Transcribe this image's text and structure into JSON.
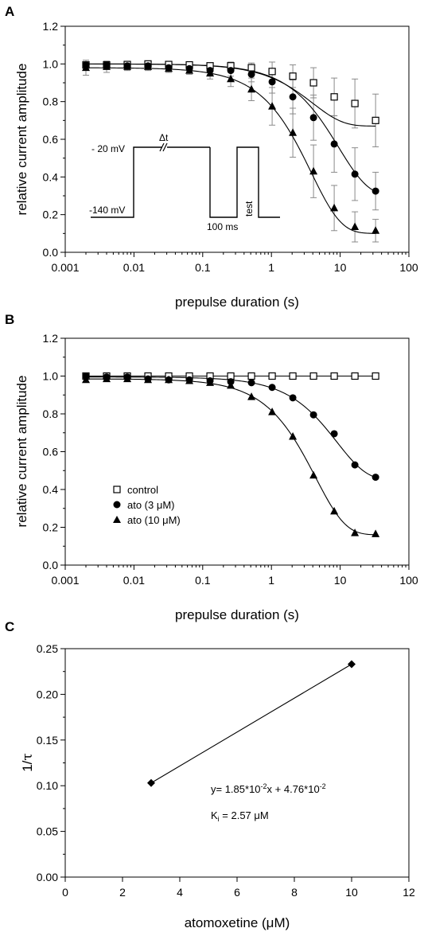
{
  "chart_data": [
    {
      "panel": "A",
      "type": "scatter",
      "xscale": "log",
      "xlim": [
        0.001,
        100
      ],
      "ylim": [
        0,
        1.2
      ],
      "xticks": [
        "0.001",
        "0.01",
        "0.1",
        "1",
        "10",
        "100"
      ],
      "yticks": [
        "0.0",
        "0.2",
        "0.4",
        "0.6",
        "0.8",
        "1.0",
        "1.2"
      ],
      "xlabel": "prepulse duration (s)",
      "ylabel": "relative current amplitude",
      "series": [
        {
          "marker": "open-square",
          "x": [
            0.002,
            0.004,
            0.008,
            0.016,
            0.032,
            0.064,
            0.128,
            0.256,
            0.512,
            1.024,
            2.048,
            4.096,
            8.192,
            16.384,
            32.768
          ],
          "y": [
            0.995,
            0.995,
            0.997,
            1.0,
            0.997,
            0.995,
            0.99,
            0.99,
            0.98,
            0.96,
            0.935,
            0.9,
            0.825,
            0.79,
            0.7
          ],
          "err": [
            0.012,
            0.012,
            0.012,
            0.012,
            0.012,
            0.012,
            0.015,
            0.02,
            0.025,
            0.05,
            0.06,
            0.08,
            0.1,
            0.13,
            0.14
          ],
          "fit": {
            "A0": 0.67,
            "A1": 0.33,
            "tau": 4.0
          }
        },
        {
          "marker": "filled-circle",
          "x": [
            0.002,
            0.004,
            0.008,
            0.016,
            0.032,
            0.064,
            0.128,
            0.256,
            0.512,
            1.024,
            2.048,
            4.096,
            8.192,
            16.384,
            32.768
          ],
          "y": [
            0.995,
            0.995,
            0.99,
            0.99,
            0.98,
            0.975,
            0.965,
            0.965,
            0.945,
            0.905,
            0.825,
            0.715,
            0.575,
            0.415,
            0.325
          ],
          "err": [
            0.012,
            0.012,
            0.012,
            0.012,
            0.015,
            0.015,
            0.02,
            0.03,
            0.04,
            0.06,
            0.09,
            0.12,
            0.15,
            0.14,
            0.1
          ],
          "fit": {
            "A0": 0.3,
            "A1": 0.7,
            "tau": 9.5
          }
        },
        {
          "marker": "filled-triangle",
          "x": [
            0.002,
            0.004,
            0.008,
            0.016,
            0.032,
            0.064,
            0.128,
            0.256,
            0.512,
            1.024,
            2.048,
            4.096,
            8.192,
            16.384,
            32.768
          ],
          "y": [
            0.98,
            0.985,
            0.985,
            0.985,
            0.975,
            0.965,
            0.95,
            0.92,
            0.865,
            0.775,
            0.635,
            0.43,
            0.235,
            0.135,
            0.115
          ],
          "err": [
            0.04,
            0.03,
            0.02,
            0.02,
            0.02,
            0.02,
            0.03,
            0.04,
            0.06,
            0.1,
            0.13,
            0.14,
            0.12,
            0.08,
            0.06
          ],
          "fit": {
            "A0": 0.1,
            "A1": 0.88,
            "tau": 3.8
          }
        }
      ],
      "protocol": {
        "labels": {
          "high_voltage": "- 20 mV",
          "low_voltage": "-140 mV",
          "delta_t": "Δt",
          "gap": "100 ms",
          "test": "test"
        }
      }
    },
    {
      "panel": "B",
      "type": "scatter",
      "xscale": "log",
      "xlim": [
        0.001,
        100
      ],
      "ylim": [
        0,
        1.2
      ],
      "xticks": [
        "0.001",
        "0.01",
        "0.1",
        "1",
        "10",
        "100"
      ],
      "yticks": [
        "0.0",
        "0.2",
        "0.4",
        "0.6",
        "0.8",
        "1.0",
        "1.2"
      ],
      "xlabel": "prepulse duration (s)",
      "ylabel": "relative current amplitude",
      "legend": "lower-left",
      "series": [
        {
          "name": "control",
          "marker": "open-square",
          "x": [
            0.002,
            0.004,
            0.008,
            0.016,
            0.032,
            0.064,
            0.128,
            0.256,
            0.512,
            1.024,
            2.048,
            4.096,
            8.192,
            16.384,
            32.768
          ],
          "y": [
            1.0,
            1.0,
            1.0,
            1.0,
            1.0,
            1.0,
            1.0,
            1.0,
            1.0,
            1.0,
            1.0,
            1.0,
            1.0,
            1.0,
            1.0
          ],
          "fit": {
            "A0": 1.0,
            "A1": 0.0,
            "tau": 1.0
          }
        },
        {
          "name": "ato (3 μM)",
          "marker": "filled-circle",
          "x": [
            0.002,
            0.004,
            0.008,
            0.016,
            0.032,
            0.064,
            0.128,
            0.256,
            0.512,
            1.024,
            2.048,
            4.096,
            8.192,
            16.384,
            32.768
          ],
          "y": [
            1.0,
            0.995,
            0.995,
            0.985,
            0.98,
            0.98,
            0.975,
            0.97,
            0.965,
            0.94,
            0.885,
            0.795,
            0.695,
            0.53,
            0.465
          ],
          "fit": {
            "A0": 0.45,
            "A1": 0.545,
            "tau": 9.0
          }
        },
        {
          "name": "ato (10 μM)",
          "marker": "filled-triangle",
          "x": [
            0.002,
            0.004,
            0.008,
            0.016,
            0.032,
            0.064,
            0.128,
            0.256,
            0.512,
            1.024,
            2.048,
            4.096,
            8.192,
            16.384,
            32.768
          ],
          "y": [
            0.98,
            0.985,
            0.985,
            0.98,
            0.98,
            0.975,
            0.965,
            0.95,
            0.89,
            0.81,
            0.68,
            0.475,
            0.285,
            0.17,
            0.165
          ],
          "fit": {
            "A0": 0.16,
            "A1": 0.825,
            "tau": 4.4
          }
        }
      ]
    },
    {
      "panel": "C",
      "type": "line",
      "xlim": [
        0,
        12
      ],
      "ylim": [
        0,
        0.25
      ],
      "xticks": [
        "0",
        "2",
        "4",
        "6",
        "8",
        "10",
        "12"
      ],
      "yticks": [
        "0.00",
        "0.05",
        "0.10",
        "0.15",
        "0.20",
        "0.25"
      ],
      "xlabel": "atomoxetine (μM)",
      "ylabel_base": "1/",
      "ylabel_tau": "τ",
      "series": [
        {
          "marker": "filled-diamond",
          "x": [
            3,
            10
          ],
          "y": [
            0.103,
            0.233
          ]
        }
      ],
      "annotations": {
        "eq_prefix": "y= 1.85*10",
        "eq_exp1": "-2",
        "eq_mid": "x + 4.76*10",
        "eq_exp2": "-2",
        "ki_K": "K",
        "ki_sub": "i",
        "ki_rest": " = 2.57 μM"
      }
    }
  ],
  "panel_letters": [
    "A",
    "B",
    "C"
  ]
}
